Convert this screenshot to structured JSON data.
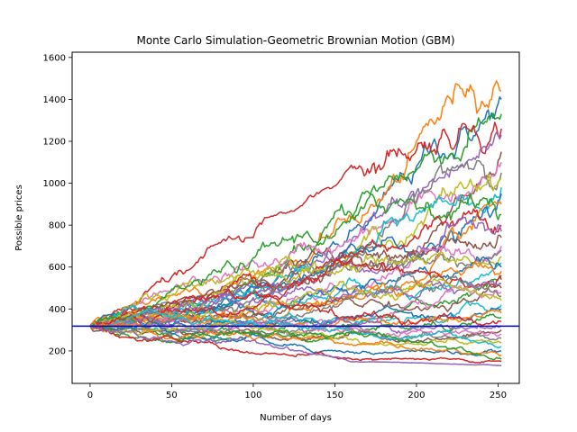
{
  "chart_data": {
    "type": "line",
    "title": "Monte Carlo Simulation-Geometric Brownian Motion (GBM)",
    "xlabel": "Number of days",
    "ylabel": "Possible prices",
    "xlim": [
      -11,
      263
    ],
    "ylim": [
      45,
      1625
    ],
    "x_ticks": [
      0,
      50,
      100,
      150,
      200,
      250
    ],
    "y_ticks": [
      200,
      400,
      600,
      800,
      1000,
      1200,
      1400,
      1600
    ],
    "n_days": 252,
    "start_price": 318,
    "reference_line": {
      "y": 318,
      "color": "#0000cc"
    },
    "grid": false,
    "legend": "none",
    "colors": [
      "#1f77b4",
      "#ff7f0e",
      "#2ca02c",
      "#d62728",
      "#9467bd",
      "#8c564b",
      "#e377c2",
      "#7f7f7f",
      "#bcbd22",
      "#17becf"
    ],
    "envelope": {
      "days": [
        0,
        50,
        100,
        150,
        200,
        250
      ],
      "upper": [
        340,
        600,
        810,
        1000,
        1430,
        1530
      ],
      "lower": [
        290,
        200,
        160,
        150,
        140,
        130
      ]
    },
    "final_prices": [
      1400,
      1440,
      1330,
      1260,
      1230,
      1150,
      1100,
      1050,
      1020,
      980,
      950,
      900,
      850,
      800,
      770,
      740,
      700,
      680,
      650,
      620,
      600,
      580,
      560,
      540,
      520,
      500,
      480,
      460,
      440,
      420,
      400,
      380,
      360,
      340,
      320,
      300,
      280,
      260,
      240,
      220,
      200,
      180,
      160,
      150,
      130
    ]
  }
}
